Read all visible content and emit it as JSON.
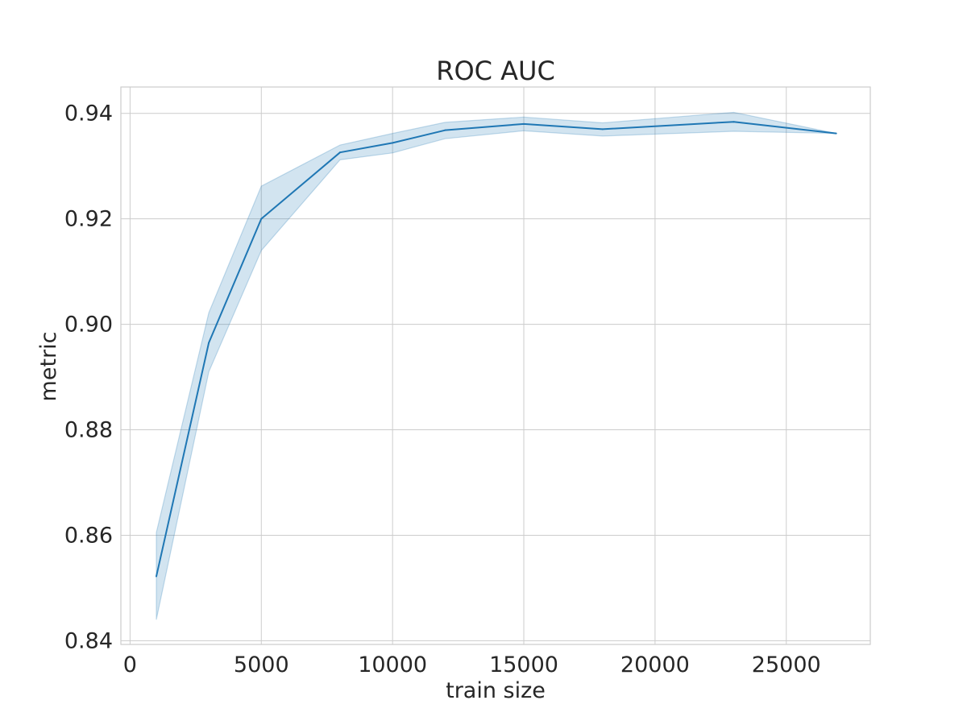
{
  "chart_data": {
    "type": "line",
    "title": "ROC AUC",
    "xlabel": "train size",
    "ylabel": "metric",
    "xlim": [
      -350,
      28200
    ],
    "ylim": [
      0.8393,
      0.945
    ],
    "xticks": [
      0,
      5000,
      10000,
      15000,
      20000,
      25000
    ],
    "xtick_labels": [
      "0",
      "5000",
      "10000",
      "15000",
      "20000",
      "25000"
    ],
    "yticks": [
      0.84,
      0.86,
      0.88,
      0.9,
      0.92,
      0.94
    ],
    "ytick_labels": [
      "0.84",
      "0.86",
      "0.88",
      "0.90",
      "0.92",
      "0.94"
    ],
    "grid": true,
    "series": [
      {
        "color": "#1f77b4",
        "band_color": "#1f77b4",
        "x": [
          1000,
          3000,
          5000,
          8000,
          10000,
          12000,
          15000,
          18000,
          23000,
          26900
        ],
        "y": [
          0.8522,
          0.8965,
          0.92,
          0.9326,
          0.9344,
          0.9368,
          0.938,
          0.937,
          0.9384,
          0.9362
        ],
        "lower": [
          0.844,
          0.891,
          0.914,
          0.9312,
          0.9325,
          0.9352,
          0.9367,
          0.9357,
          0.9366,
          0.9362
        ],
        "upper": [
          0.8605,
          0.9022,
          0.9262,
          0.934,
          0.9362,
          0.9383,
          0.9393,
          0.9382,
          0.9402,
          0.9362
        ]
      }
    ]
  }
}
